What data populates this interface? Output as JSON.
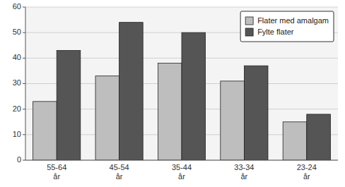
{
  "chart_data": {
    "type": "bar",
    "categories": [
      "55-64\når",
      "45-54\når",
      "35-44\når",
      "33-34\når",
      "23-24\når"
    ],
    "series": [
      {
        "name": "Flater med amalgam",
        "color": "#bebebe",
        "values": [
          23,
          33,
          38,
          31,
          15
        ]
      },
      {
        "name": "Fylte flater",
        "color": "#555555",
        "values": [
          43,
          54,
          50,
          37,
          18
        ]
      }
    ],
    "ylim": [
      0,
      60
    ],
    "yticks": [
      0,
      10,
      20,
      30,
      40,
      50,
      60
    ],
    "grid": true,
    "legend": "upper right"
  }
}
